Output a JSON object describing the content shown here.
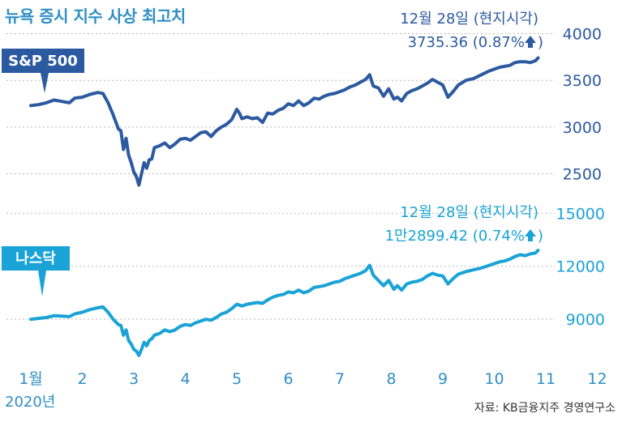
{
  "title": "뉴욕 증시 지수 사상 최고치",
  "source": "자료: KB금융지주 경영연구소",
  "colors": {
    "sp500": "#2c5aa0",
    "nasdaq": "#1aa3d6",
    "title": "#2f8fc4",
    "grid": "#b8b8b8",
    "month_label": "#2f8fc4"
  },
  "x_axis": {
    "year_label": "2020년",
    "ticks": [
      {
        "label": "1월",
        "month": 1
      },
      {
        "label": "2",
        "month": 2
      },
      {
        "label": "3",
        "month": 3
      },
      {
        "label": "4",
        "month": 4
      },
      {
        "label": "5",
        "month": 5
      },
      {
        "label": "6",
        "month": 6
      },
      {
        "label": "7",
        "month": 7
      },
      {
        "label": "8",
        "month": 8
      },
      {
        "label": "9",
        "month": 9
      },
      {
        "label": "10",
        "month": 10
      },
      {
        "label": "11",
        "month": 11
      },
      {
        "label": "12",
        "month": 12
      }
    ]
  },
  "chart_data": [
    {
      "type": "line",
      "series_label": "S&P 500",
      "annotation": {
        "date_label": "12월 28일 (현지시각)",
        "value_text": "3735.36 (0.87%",
        "arrow": "up-arrow-icon"
      },
      "y_ticks": [
        {
          "label": "4000",
          "value": 4000
        },
        {
          "label": "3500",
          "value": 3500
        },
        {
          "label": "3000",
          "value": 3000
        },
        {
          "label": "2500",
          "value": 2500
        }
      ],
      "ylim": [
        2280,
        4100
      ],
      "grid": true,
      "points": [
        [
          1.0,
          3230
        ],
        [
          1.15,
          3240
        ],
        [
          1.3,
          3260
        ],
        [
          1.45,
          3290
        ],
        [
          1.6,
          3275
        ],
        [
          1.75,
          3260
        ],
        [
          1.85,
          3310
        ],
        [
          2.0,
          3320
        ],
        [
          2.15,
          3350
        ],
        [
          2.3,
          3370
        ],
        [
          2.4,
          3360
        ],
        [
          2.5,
          3260
        ],
        [
          2.6,
          3130
        ],
        [
          2.7,
          2980
        ],
        [
          2.75,
          2960
        ],
        [
          2.8,
          2760
        ],
        [
          2.85,
          2880
        ],
        [
          2.9,
          2700
        ],
        [
          2.95,
          2620
        ],
        [
          3.0,
          2520
        ],
        [
          3.05,
          2470
        ],
        [
          3.1,
          2380
        ],
        [
          3.15,
          2500
        ],
        [
          3.2,
          2620
        ],
        [
          3.25,
          2560
        ],
        [
          3.3,
          2650
        ],
        [
          3.35,
          2660
        ],
        [
          3.4,
          2780
        ],
        [
          3.5,
          2800
        ],
        [
          3.6,
          2830
        ],
        [
          3.7,
          2780
        ],
        [
          3.8,
          2820
        ],
        [
          3.9,
          2870
        ],
        [
          4.0,
          2880
        ],
        [
          4.1,
          2860
        ],
        [
          4.2,
          2900
        ],
        [
          4.3,
          2940
        ],
        [
          4.4,
          2950
        ],
        [
          4.5,
          2900
        ],
        [
          4.6,
          2960
        ],
        [
          4.7,
          3000
        ],
        [
          4.8,
          3030
        ],
        [
          4.9,
          3080
        ],
        [
          5.0,
          3190
        ],
        [
          5.05,
          3150
        ],
        [
          5.1,
          3090
        ],
        [
          5.2,
          3110
        ],
        [
          5.3,
          3090
        ],
        [
          5.4,
          3100
        ],
        [
          5.5,
          3050
        ],
        [
          5.6,
          3150
        ],
        [
          5.7,
          3140
        ],
        [
          5.8,
          3180
        ],
        [
          5.9,
          3200
        ],
        [
          6.0,
          3250
        ],
        [
          6.1,
          3230
        ],
        [
          6.2,
          3280
        ],
        [
          6.3,
          3230
        ],
        [
          6.4,
          3260
        ],
        [
          6.5,
          3310
        ],
        [
          6.6,
          3300
        ],
        [
          6.7,
          3330
        ],
        [
          6.8,
          3350
        ],
        [
          6.9,
          3360
        ],
        [
          7.0,
          3380
        ],
        [
          7.1,
          3400
        ],
        [
          7.2,
          3430
        ],
        [
          7.3,
          3450
        ],
        [
          7.4,
          3480
        ],
        [
          7.5,
          3510
        ],
        [
          7.58,
          3560
        ],
        [
          7.65,
          3440
        ],
        [
          7.75,
          3420
        ],
        [
          7.85,
          3330
        ],
        [
          7.95,
          3410
        ],
        [
          8.05,
          3300
        ],
        [
          8.12,
          3320
        ],
        [
          8.2,
          3280
        ],
        [
          8.3,
          3360
        ],
        [
          8.4,
          3390
        ],
        [
          8.5,
          3410
        ],
        [
          8.6,
          3440
        ],
        [
          8.7,
          3470
        ],
        [
          8.8,
          3510
        ],
        [
          8.9,
          3480
        ],
        [
          9.0,
          3450
        ],
        [
          9.1,
          3320
        ],
        [
          9.2,
          3380
        ],
        [
          9.3,
          3450
        ],
        [
          9.45,
          3500
        ],
        [
          9.6,
          3520
        ],
        [
          9.75,
          3560
        ],
        [
          9.9,
          3600
        ],
        [
          10.0,
          3620
        ],
        [
          10.1,
          3640
        ],
        [
          10.2,
          3650
        ],
        [
          10.3,
          3660
        ],
        [
          10.4,
          3690
        ],
        [
          10.5,
          3700
        ],
        [
          10.6,
          3700
        ],
        [
          10.7,
          3690
        ],
        [
          10.8,
          3710
        ],
        [
          10.85,
          3740
        ]
      ]
    },
    {
      "type": "line",
      "series_label": "나스닥",
      "annotation": {
        "date_label": "12월 28일 (현지시각)",
        "value_text": "1만2899.42 (0.74%",
        "arrow": "up-arrow-icon"
      },
      "y_ticks": [
        {
          "label": "15000",
          "value": 15000
        },
        {
          "label": "12000",
          "value": 12000
        },
        {
          "label": "9000",
          "value": 9000
        }
      ],
      "ylim": [
        6900,
        15700
      ],
      "grid": true,
      "points": [
        [
          1.0,
          9000
        ],
        [
          1.15,
          9050
        ],
        [
          1.3,
          9100
        ],
        [
          1.45,
          9200
        ],
        [
          1.6,
          9180
        ],
        [
          1.75,
          9150
        ],
        [
          1.85,
          9300
        ],
        [
          2.0,
          9400
        ],
        [
          2.15,
          9550
        ],
        [
          2.3,
          9650
        ],
        [
          2.4,
          9700
        ],
        [
          2.5,
          9400
        ],
        [
          2.6,
          9000
        ],
        [
          2.7,
          8700
        ],
        [
          2.75,
          8650
        ],
        [
          2.8,
          8100
        ],
        [
          2.85,
          8400
        ],
        [
          2.9,
          7800
        ],
        [
          2.95,
          7600
        ],
        [
          3.0,
          7300
        ],
        [
          3.05,
          7200
        ],
        [
          3.1,
          6950
        ],
        [
          3.15,
          7300
        ],
        [
          3.2,
          7700
        ],
        [
          3.25,
          7500
        ],
        [
          3.3,
          7800
        ],
        [
          3.35,
          7900
        ],
        [
          3.4,
          8100
        ],
        [
          3.5,
          8200
        ],
        [
          3.6,
          8400
        ],
        [
          3.7,
          8300
        ],
        [
          3.8,
          8400
        ],
        [
          3.9,
          8600
        ],
        [
          4.0,
          8700
        ],
        [
          4.1,
          8650
        ],
        [
          4.2,
          8800
        ],
        [
          4.3,
          8900
        ],
        [
          4.4,
          9000
        ],
        [
          4.5,
          8950
        ],
        [
          4.6,
          9100
        ],
        [
          4.7,
          9300
        ],
        [
          4.8,
          9400
        ],
        [
          4.9,
          9600
        ],
        [
          5.0,
          9850
        ],
        [
          5.05,
          9800
        ],
        [
          5.1,
          9750
        ],
        [
          5.2,
          9850
        ],
        [
          5.3,
          9900
        ],
        [
          5.4,
          9950
        ],
        [
          5.5,
          9900
        ],
        [
          5.6,
          10100
        ],
        [
          5.7,
          10250
        ],
        [
          5.8,
          10350
        ],
        [
          5.9,
          10400
        ],
        [
          6.0,
          10550
        ],
        [
          6.1,
          10500
        ],
        [
          6.2,
          10650
        ],
        [
          6.3,
          10500
        ],
        [
          6.4,
          10600
        ],
        [
          6.5,
          10800
        ],
        [
          6.6,
          10850
        ],
        [
          6.7,
          10900
        ],
        [
          6.8,
          11000
        ],
        [
          6.9,
          11100
        ],
        [
          7.0,
          11150
        ],
        [
          7.1,
          11300
        ],
        [
          7.2,
          11400
        ],
        [
          7.3,
          11500
        ],
        [
          7.4,
          11600
        ],
        [
          7.5,
          11750
        ],
        [
          7.58,
          12050
        ],
        [
          7.65,
          11500
        ],
        [
          7.75,
          11200
        ],
        [
          7.85,
          10900
        ],
        [
          7.95,
          11200
        ],
        [
          8.05,
          10700
        ],
        [
          8.12,
          10900
        ],
        [
          8.2,
          10650
        ],
        [
          8.3,
          11000
        ],
        [
          8.4,
          11100
        ],
        [
          8.5,
          11150
        ],
        [
          8.6,
          11250
        ],
        [
          8.7,
          11450
        ],
        [
          8.8,
          11600
        ],
        [
          8.9,
          11500
        ],
        [
          9.0,
          11450
        ],
        [
          9.1,
          11000
        ],
        [
          9.2,
          11300
        ],
        [
          9.3,
          11550
        ],
        [
          9.45,
          11700
        ],
        [
          9.6,
          11800
        ],
        [
          9.75,
          11900
        ],
        [
          9.9,
          12050
        ],
        [
          10.0,
          12150
        ],
        [
          10.1,
          12250
        ],
        [
          10.2,
          12300
        ],
        [
          10.3,
          12400
        ],
        [
          10.4,
          12550
        ],
        [
          10.5,
          12650
        ],
        [
          10.6,
          12600
        ],
        [
          10.7,
          12700
        ],
        [
          10.8,
          12750
        ],
        [
          10.85,
          12900
        ]
      ]
    }
  ]
}
